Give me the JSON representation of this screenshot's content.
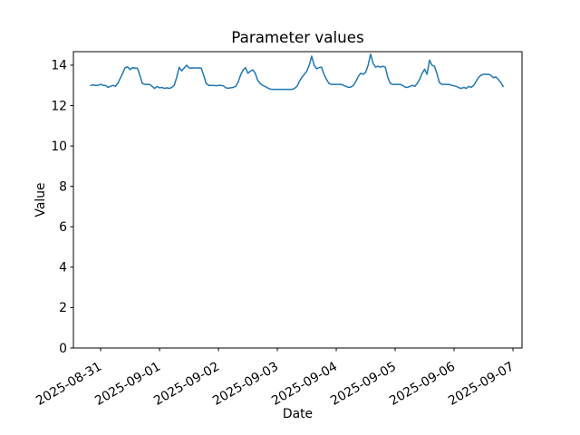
{
  "chart_data": {
    "type": "line",
    "title": "Parameter values",
    "xlabel": "Date",
    "ylabel": "Value",
    "grid": false,
    "legend": null,
    "x_tick_labels": [
      "2025-08-31",
      "2025-09-01",
      "2025-09-02",
      "2025-09-03",
      "2025-09-04",
      "2025-09-05",
      "2025-09-06",
      "2025-09-07"
    ],
    "y_ticks": [
      0,
      2,
      4,
      6,
      8,
      10,
      12,
      14
    ],
    "ylim": [
      0,
      14.67
    ],
    "xlim": [
      "2025-08-30 12:55",
      "2025-09-07 03:41"
    ],
    "series": [
      {
        "name": "parameter-values",
        "color": "#1f77b4",
        "line_width": 1.5,
        "start": "2025-08-30 20:00",
        "interval_hours": 1,
        "values": [
          13.0,
          13.02,
          13.0,
          13.0,
          13.05,
          13.0,
          13.0,
          12.9,
          12.95,
          13.0,
          12.95,
          13.1,
          13.35,
          13.6,
          13.88,
          13.92,
          13.78,
          13.88,
          13.85,
          13.85,
          13.5,
          13.1,
          13.05,
          13.05,
          13.05,
          12.95,
          12.85,
          12.95,
          12.88,
          12.9,
          12.85,
          12.88,
          12.85,
          12.9,
          13.0,
          13.4,
          13.9,
          13.72,
          13.85,
          14.0,
          13.87,
          13.85,
          13.87,
          13.86,
          13.87,
          13.85,
          13.5,
          13.1,
          13.0,
          13.0,
          13.0,
          12.98,
          13.0,
          13.0,
          12.98,
          12.88,
          12.86,
          12.88,
          12.9,
          12.95,
          13.15,
          13.5,
          13.75,
          13.88,
          13.6,
          13.7,
          13.77,
          13.6,
          13.25,
          13.1,
          13.0,
          12.95,
          12.88,
          12.82,
          12.8,
          12.8,
          12.8,
          12.8,
          12.8,
          12.8,
          12.8,
          12.8,
          12.8,
          12.85,
          12.95,
          13.2,
          13.4,
          13.55,
          13.7,
          14.0,
          14.45,
          14.0,
          13.82,
          13.88,
          13.9,
          13.55,
          13.3,
          13.1,
          13.05,
          13.05,
          13.05,
          13.05,
          13.05,
          13.0,
          12.95,
          12.9,
          12.92,
          13.0,
          13.2,
          13.45,
          13.6,
          13.55,
          13.65,
          14.0,
          14.55,
          14.1,
          13.9,
          13.95,
          13.9,
          13.95,
          13.9,
          13.4,
          13.1,
          13.05,
          13.05,
          13.05,
          13.05,
          13.0,
          12.92,
          12.9,
          12.95,
          13.0,
          12.95,
          13.1,
          13.3,
          13.6,
          13.8,
          13.55,
          14.25,
          14.0,
          13.95,
          13.6,
          13.15,
          13.05,
          13.05,
          13.05,
          13.05,
          13.0,
          12.98,
          12.95,
          12.88,
          12.85,
          12.9,
          12.85,
          12.95,
          12.9,
          13.0,
          13.2,
          13.4,
          13.5,
          13.55,
          13.55,
          13.55,
          13.5,
          13.38,
          13.42,
          13.3,
          13.15,
          12.95
        ]
      }
    ]
  }
}
